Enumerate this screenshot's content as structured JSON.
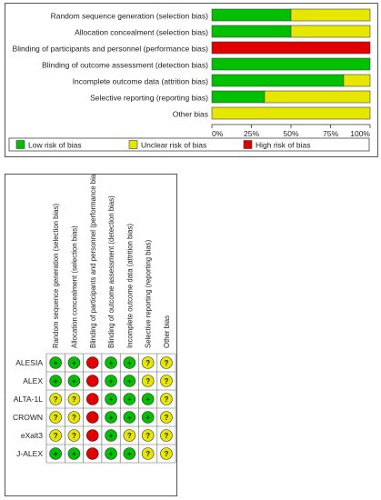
{
  "chart_data": [
    {
      "type": "bar",
      "stacked": true,
      "orientation": "horizontal",
      "categories": [
        "Random sequence generation (selection bias)",
        "Allocation concealment (selection bias)",
        "Blinding of participants and personnel (performance bias)",
        "Blinding of outcome assessment (detection bias)",
        "Incomplete outcome data (attrition bias)",
        "Selective reporting (reporting bias)",
        "Other bias"
      ],
      "series": [
        {
          "name": "Low risk of bias",
          "color": "#00c000",
          "values": [
            50,
            50,
            0,
            100,
            83.3,
            33.3,
            0
          ]
        },
        {
          "name": "Unclear risk of bias",
          "color": "#e6e600",
          "values": [
            50,
            50,
            0,
            0,
            16.7,
            66.7,
            100
          ]
        },
        {
          "name": "High risk of bias",
          "color": "#e00000",
          "values": [
            0,
            0,
            100,
            0,
            0,
            0,
            0
          ]
        }
      ],
      "xticks": [
        "0%",
        "25%",
        "50%",
        "75%",
        "100%"
      ],
      "xlim": [
        0,
        100
      ],
      "legend": "bottom"
    },
    {
      "type": "table",
      "columns": [
        "Random sequence generation (selection bias)",
        "Allocation concealment (selection bias)",
        "Blinding of participants and personnel (performance bias)",
        "Blinding of outcome assessment (detection bias)",
        "Incomplete outcome data (attrition bias)",
        "Selective reporting (reporting bias)",
        "Other bias"
      ],
      "rows": [
        "ALESIA",
        "ALEX",
        "ALTA-1L",
        "CROWN",
        "eXalt3",
        "J-ALEX"
      ],
      "cells": [
        [
          "low",
          "low",
          "high",
          "low",
          "low",
          "unclear",
          "unclear"
        ],
        [
          "low",
          "low",
          "high",
          "low",
          "low",
          "unclear",
          "unclear"
        ],
        [
          "unclear",
          "unclear",
          "high",
          "low",
          "low",
          "low",
          "unclear"
        ],
        [
          "unclear",
          "unclear",
          "high",
          "low",
          "low",
          "low",
          "unclear"
        ],
        [
          "unclear",
          "unclear",
          "high",
          "low",
          "unclear",
          "unclear",
          "unclear"
        ],
        [
          "low",
          "low",
          "high",
          "low",
          "low",
          "unclear",
          "unclear"
        ]
      ],
      "symbols": {
        "low": "+",
        "unclear": "?",
        "high": ""
      },
      "colors": {
        "low": "#00c000",
        "unclear": "#e6e600",
        "high": "#e00000"
      }
    }
  ]
}
